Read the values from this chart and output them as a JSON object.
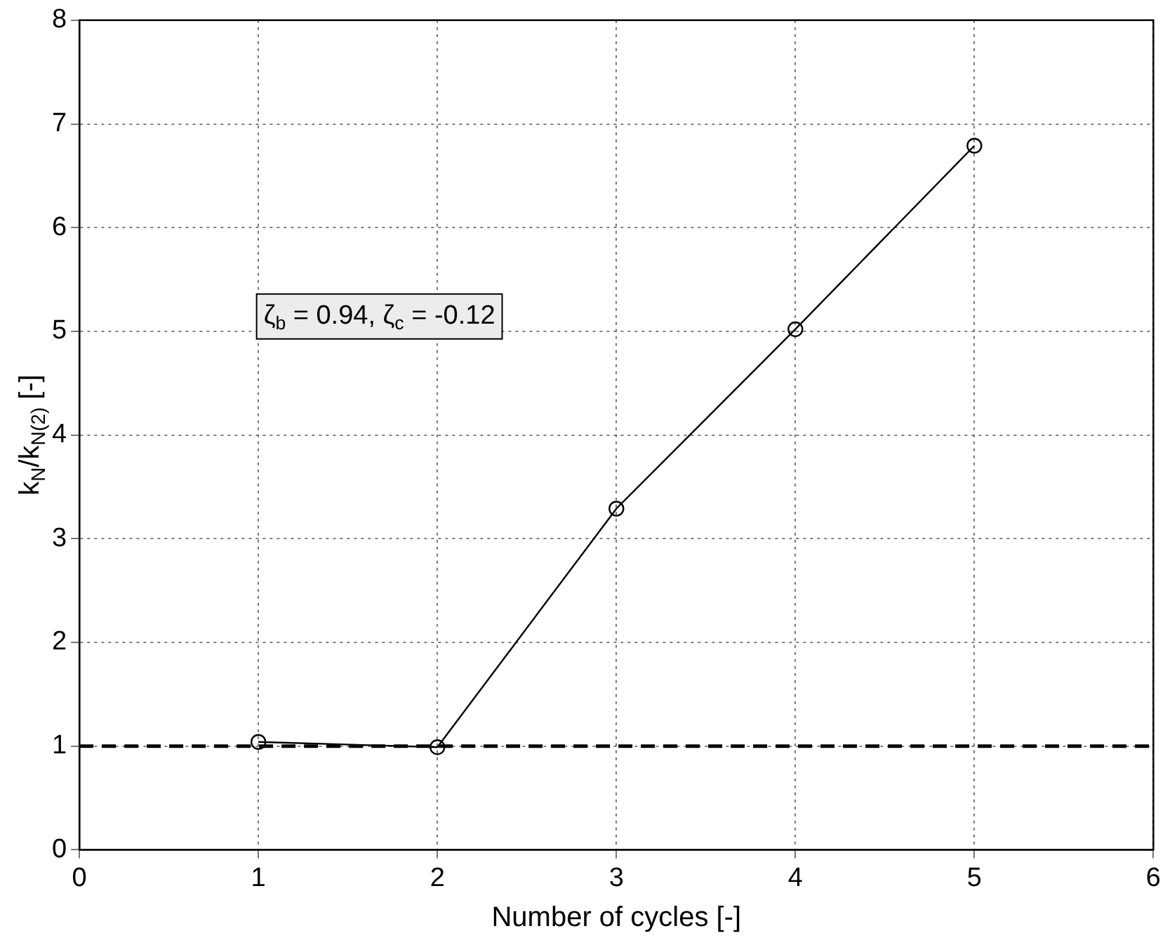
{
  "chart_data": {
    "type": "line",
    "xlabel": "Number of cycles [-]",
    "ylabel": "k$_{N}$/k$_{N(2)}$ [-]",
    "x": [
      1,
      2,
      3,
      4,
      5
    ],
    "series": [
      {
        "color": "#000000",
        "values": [
          1.04,
          0.99,
          3.29,
          5.02,
          6.79
        ]
      }
    ],
    "xlim": [
      0,
      6
    ],
    "xticks": [
      0,
      1,
      2,
      3,
      4,
      5,
      6
    ],
    "ylim": [
      0,
      8
    ],
    "yticks": [
      0,
      1,
      2,
      3,
      4,
      5,
      6,
      7,
      8
    ],
    "grid": true,
    "marker": "circle",
    "line_style": "solid",
    "legend": false,
    "ref_lines": [
      {
        "axis": "y",
        "value": 1,
        "color": "#000000",
        "line_style": "dashed"
      }
    ],
    "annotations": [
      "ζ$_{b}$ = 0.94, ζ$_{c}$ = -0.12"
    ]
  }
}
